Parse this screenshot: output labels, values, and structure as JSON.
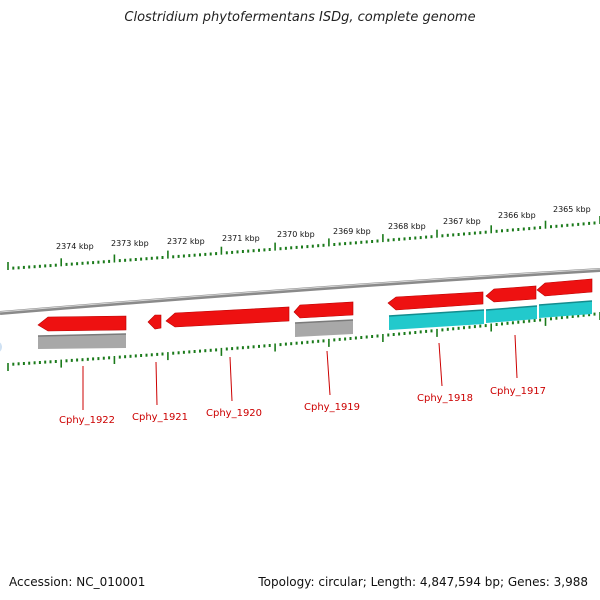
{
  "title": "Clostridium phytofermentans ISDg, complete genome",
  "footer": {
    "accession": "Accession: NC_010001",
    "stats": "Topology: circular; Length: 4,847,594 bp; Genes: 3,988"
  },
  "colors": {
    "gene_red": "#ee1111",
    "gene_red_edge": "#bb0000",
    "cds_gray": "#a8a8a8",
    "cds_cyan": "#22c9cc",
    "backbone": "#8a8a8a",
    "ticks": "#1a7a1a",
    "label_red": "#cc0000"
  },
  "scale_labels": [
    {
      "id": "2374",
      "text": "2374 kbp"
    },
    {
      "id": "2373",
      "text": "2373 kbp"
    },
    {
      "id": "2372",
      "text": "2372 kbp"
    },
    {
      "id": "2371",
      "text": "2371 kbp"
    },
    {
      "id": "2370",
      "text": "2370 kbp"
    },
    {
      "id": "2369",
      "text": "2369 kbp"
    },
    {
      "id": "2368",
      "text": "2368 kbp"
    },
    {
      "id": "2367",
      "text": "2367 kbp"
    },
    {
      "id": "2366",
      "text": "2366 kbp"
    },
    {
      "id": "2365",
      "text": "2365 kbp"
    }
  ],
  "genes": [
    {
      "id": "Cphy_1922",
      "label": "Cphy_1922",
      "cds": "gray"
    },
    {
      "id": "Cphy_1921",
      "label": "Cphy_1921",
      "cds": "none"
    },
    {
      "id": "Cphy_1920",
      "label": "Cphy_1920",
      "cds": "none"
    },
    {
      "id": "Cphy_1919",
      "label": "Cphy_1919",
      "cds": "gray"
    },
    {
      "id": "Cphy_1918",
      "label": "Cphy_1918",
      "cds": "cyan"
    },
    {
      "id": "Cphy_1917",
      "label": "Cphy_1917",
      "cds": "cyan"
    }
  ]
}
